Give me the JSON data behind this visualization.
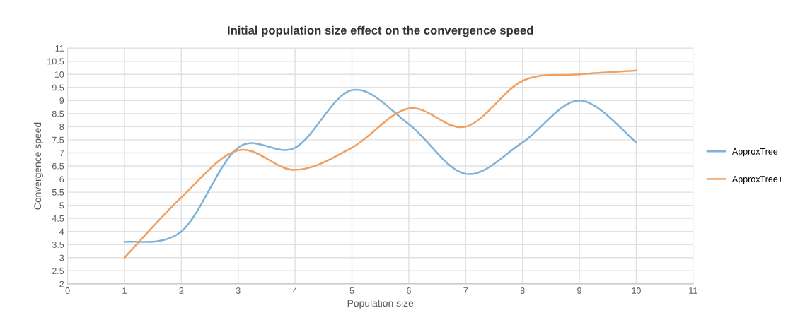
{
  "chart_data": {
    "type": "line",
    "title": "Initial population size effect on the convergence speed",
    "xlabel": "Population size",
    "ylabel": "Convergence speed",
    "x": [
      1,
      2,
      3,
      4,
      5,
      6,
      7,
      8,
      9,
      10
    ],
    "series": [
      {
        "name": "ApproxTree",
        "color": "#7fb2d9",
        "values": [
          3.6,
          4.0,
          7.2,
          7.2,
          9.4,
          8.1,
          6.2,
          7.4,
          9.0,
          7.4
        ]
      },
      {
        "name": "ApproxTree+",
        "color": "#f0a060",
        "values": [
          3.0,
          5.3,
          7.1,
          6.35,
          7.2,
          8.7,
          8.0,
          9.75,
          10.0,
          10.15
        ]
      }
    ],
    "xlim": [
      0,
      11
    ],
    "xticks": [
      0,
      1,
      2,
      3,
      4,
      5,
      6,
      7,
      8,
      9,
      10,
      11
    ],
    "ylim": [
      2,
      11
    ],
    "yticks": [
      2,
      2.5,
      3,
      3.5,
      4,
      4.5,
      5,
      5.5,
      6,
      6.5,
      7,
      7.5,
      8,
      8.5,
      9,
      9.5,
      10,
      10.5,
      11
    ],
    "grid": true,
    "legend": "right",
    "marker": "none",
    "line_style": "solid"
  }
}
